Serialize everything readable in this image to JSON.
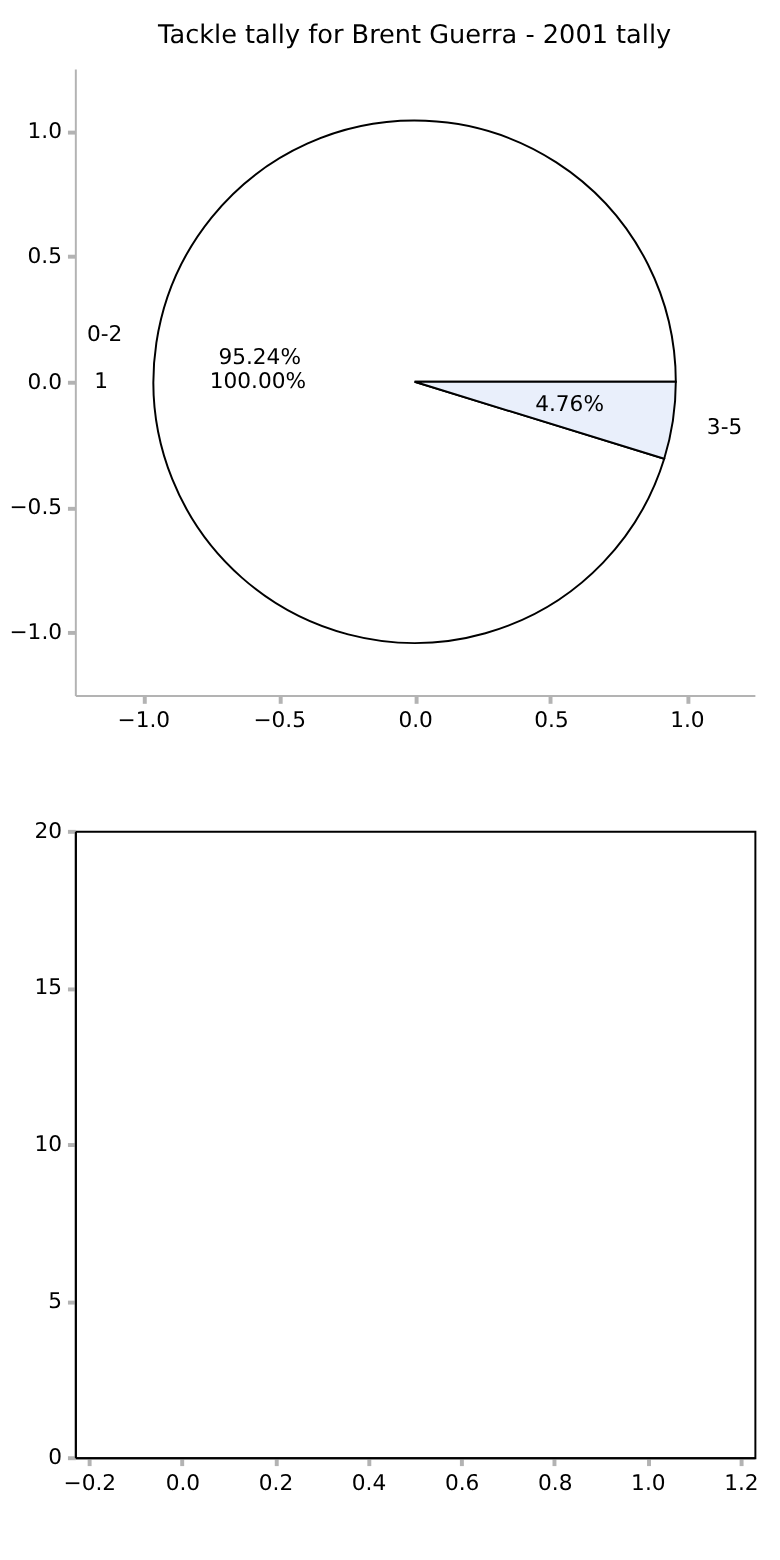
{
  "chart_data": [
    {
      "type": "pie",
      "title": "Tackle tally for Brent Guerra - 2001 tally",
      "categories": [
        "0-2",
        "3-5"
      ],
      "values": [
        95.24,
        4.76
      ],
      "colors": [
        "#ffffff",
        "#e9effb"
      ],
      "value_labels": [
        "95.24%",
        "4.76%"
      ],
      "annotations": [
        "1",
        "100.00%"
      ]
    },
    {
      "type": "scatter",
      "xlim": [
        -1.25,
        1.25
      ],
      "ylim": [
        -1.25,
        1.25
      ],
      "xticks": [
        {
          "value": -1,
          "label": "−1.0"
        },
        -0.5,
        {
          "value": 0,
          "label": "0.0"
        },
        0.5,
        {
          "value": 1,
          "label": "1.0"
        }
      ],
      "yticks": [
        {
          "value": -1,
          "label": "−1.0"
        },
        -0.5,
        {
          "value": 0,
          "label": "0.0"
        },
        0.5,
        {
          "value": 1,
          "label": "1.0"
        }
      ]
    },
    {
      "type": "bar",
      "xlim": [
        -0.23,
        1.23
      ],
      "ylim": [
        0,
        20
      ],
      "xticks": [
        -0.2,
        {
          "value": 0,
          "label": "0.0"
        },
        0.2,
        0.4,
        0.6,
        0.8,
        {
          "value": 1,
          "label": "1.0"
        },
        1.2
      ],
      "yticks": [
        0,
        5,
        10,
        15,
        20
      ]
    }
  ]
}
